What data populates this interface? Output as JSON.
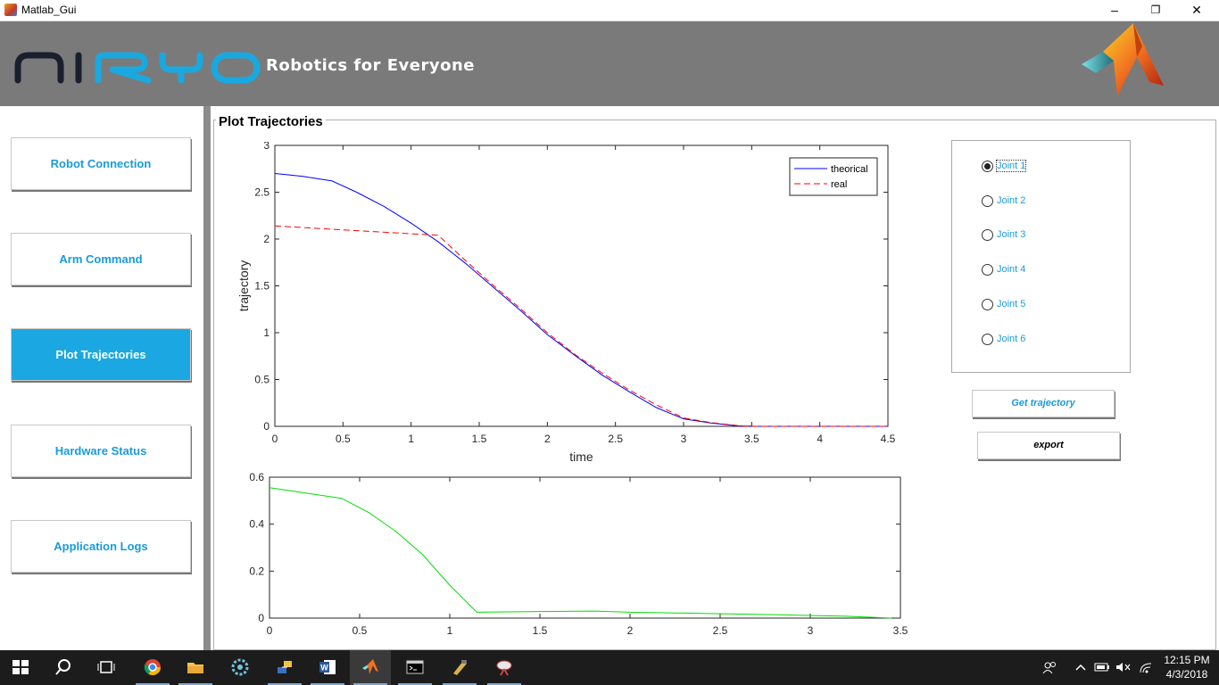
{
  "window": {
    "title": "Matlab_Gui",
    "controls": {
      "minimize": "–",
      "maximize": "❐",
      "close": "✕"
    }
  },
  "header": {
    "logo_text": "NIRYO",
    "slogan": "Robotics for Everyone",
    "colors": {
      "logo_dark": "#1a1f2e",
      "logo_cyan": "#19a9e0",
      "background": "#7a7a7a"
    }
  },
  "nav": {
    "items": [
      {
        "label": "Robot Connection",
        "active": false
      },
      {
        "label": "Arm Command",
        "active": false
      },
      {
        "label": "Plot Trajectories",
        "active": true
      },
      {
        "label": "Hardware Status",
        "active": false
      },
      {
        "label": "Application Logs",
        "active": false
      }
    ]
  },
  "panel": {
    "title": "Plot Trajectories"
  },
  "joints": {
    "selected": "Joint 1",
    "options": [
      "Joint 1",
      "Joint 2",
      "Joint 3",
      "Joint 4",
      "Joint 5",
      "Joint 6"
    ]
  },
  "buttons": {
    "get_trajectory": "Get trajectory",
    "export": "export"
  },
  "taskbar": {
    "time": "12:15 PM",
    "date": "4/3/2018",
    "items": [
      "start-icon",
      "search-icon",
      "task-view-icon",
      "chrome-icon",
      "file-explorer-icon",
      "settings-gear-icon",
      "network-app-icon",
      "word-icon",
      "matlab-icon",
      "terminal-icon",
      "tool-icon",
      "satellite-dish-icon"
    ]
  },
  "chart_data": [
    {
      "type": "line",
      "title": "",
      "xlabel": "time",
      "ylabel": "trajectory",
      "xlim": [
        0,
        4.5
      ],
      "ylim": [
        0,
        3
      ],
      "xticks": [
        "0",
        "0.5",
        "1",
        "1.5",
        "2",
        "2.5",
        "3",
        "3.5",
        "4",
        "4.5"
      ],
      "yticks": [
        "0",
        "0.5",
        "1",
        "1.5",
        "2",
        "2.5",
        "3"
      ],
      "legend_position": "top-right",
      "series": [
        {
          "name": "theorical",
          "color": "#0000ff",
          "style": "solid",
          "x": [
            0,
            0.2,
            0.42,
            0.6,
            0.8,
            1.0,
            1.2,
            1.4,
            1.6,
            1.8,
            2.0,
            2.2,
            2.4,
            2.6,
            2.8,
            3.0,
            3.2,
            3.4,
            3.55,
            4.5
          ],
          "y": [
            2.7,
            2.67,
            2.62,
            2.5,
            2.35,
            2.17,
            1.97,
            1.74,
            1.49,
            1.24,
            0.98,
            0.76,
            0.55,
            0.37,
            0.2,
            0.08,
            0.035,
            0.005,
            0,
            0
          ]
        },
        {
          "name": "real",
          "color": "#ff0000",
          "style": "dashed",
          "x": [
            0,
            1.2,
            1.4,
            1.6,
            1.8,
            2.0,
            2.2,
            2.4,
            2.6,
            2.8,
            3.0,
            3.2,
            3.45,
            4.5
          ],
          "y": [
            2.14,
            2.04,
            1.77,
            1.51,
            1.26,
            1.0,
            0.77,
            0.57,
            0.39,
            0.23,
            0.09,
            0.04,
            0,
            0
          ]
        }
      ]
    },
    {
      "type": "line",
      "title": "",
      "xlabel": "",
      "ylabel": "",
      "xlim": [
        0,
        3.5
      ],
      "ylim": [
        0,
        0.6
      ],
      "xticks": [
        "0",
        "0.5",
        "1",
        "1.5",
        "2",
        "2.5",
        "3",
        "3.5"
      ],
      "yticks": [
        "0",
        "0.2",
        "0.4",
        "0.6"
      ],
      "series": [
        {
          "color": "#00dd00",
          "style": "solid",
          "x": [
            0,
            0.4,
            0.55,
            0.7,
            0.85,
            1.0,
            1.15,
            1.5,
            1.8,
            2.0,
            2.4,
            2.8,
            3.2,
            3.45
          ],
          "y": [
            0.555,
            0.51,
            0.45,
            0.37,
            0.27,
            0.14,
            0.025,
            0.028,
            0.03,
            0.025,
            0.02,
            0.015,
            0.008,
            0
          ]
        }
      ]
    }
  ]
}
